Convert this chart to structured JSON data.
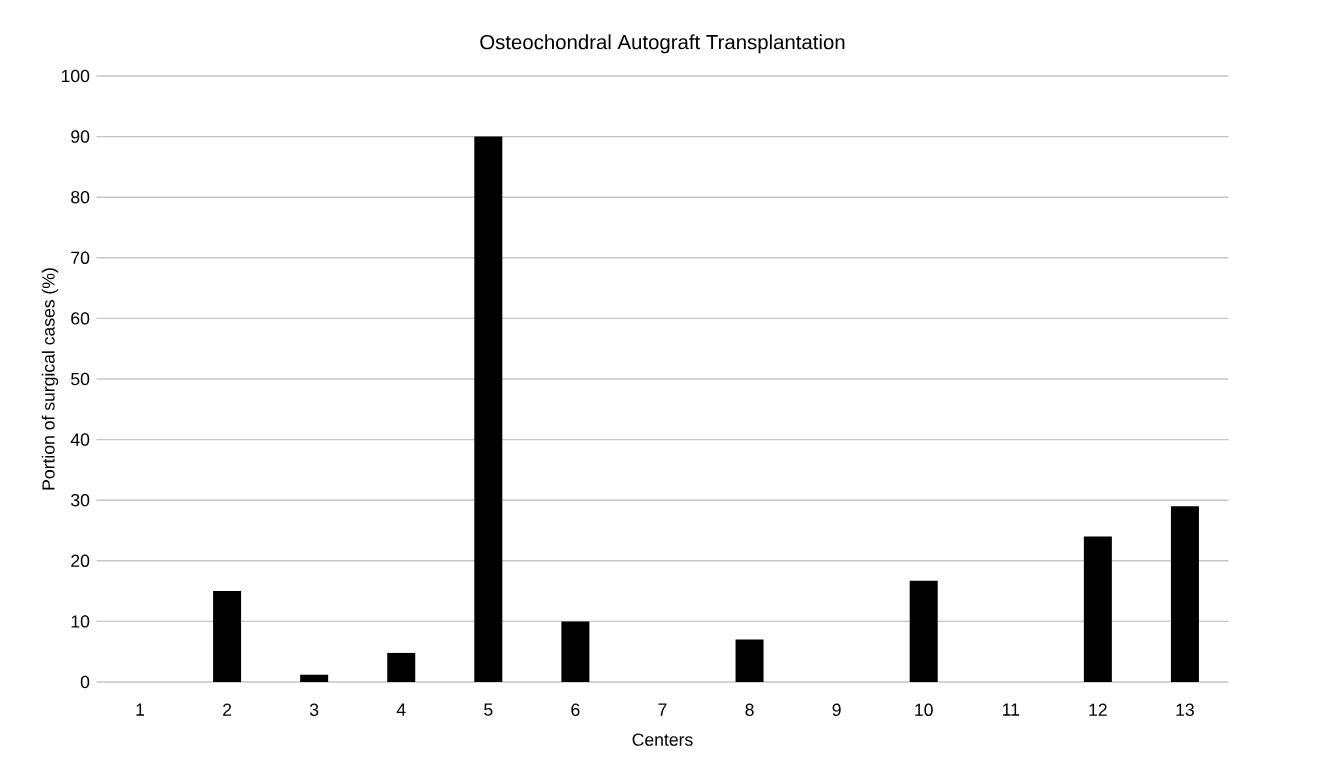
{
  "chart_data": {
    "type": "bar",
    "title": "Osteochondral Autograft Transplantation",
    "xlabel": "Centers",
    "ylabel": "Portion of surgical cases (%)",
    "categories": [
      "1",
      "2",
      "3",
      "4",
      "5",
      "6",
      "7",
      "8",
      "9",
      "10",
      "11",
      "12",
      "13"
    ],
    "values": [
      0,
      15,
      1.2,
      4.8,
      90,
      10,
      0,
      7,
      0,
      16.7,
      0,
      24,
      29
    ],
    "color": "#000000",
    "ylim": [
      0,
      100
    ],
    "yticks": [
      0,
      10,
      20,
      30,
      40,
      50,
      60,
      70,
      80,
      90,
      100
    ],
    "grid": "y"
  }
}
